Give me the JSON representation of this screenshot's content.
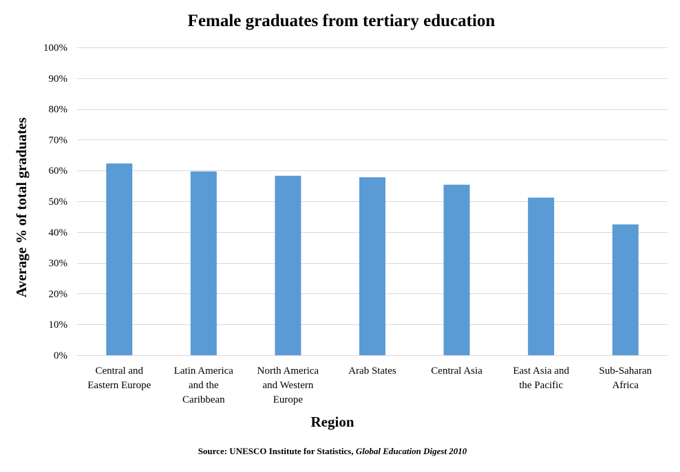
{
  "chart_data": {
    "type": "bar",
    "title": "Female graduates from tertiary education",
    "xlabel": "Region",
    "ylabel": "Average % of total graduates",
    "categories": [
      [
        "Central and",
        "Eastern Europe"
      ],
      [
        "Latin America",
        "and the",
        "Caribbean"
      ],
      [
        "North America",
        "and Western",
        "Europe"
      ],
      [
        "Arab States"
      ],
      [
        "Central Asia"
      ],
      [
        "East Asia and",
        "the Pacific"
      ],
      [
        "Sub-Saharan",
        "Africa"
      ]
    ],
    "values": [
      62.3,
      59.7,
      58.3,
      57.8,
      55.4,
      51.2,
      42.5
    ],
    "ylim": [
      0,
      100
    ],
    "yticks": [
      0,
      10,
      20,
      30,
      40,
      50,
      60,
      70,
      80,
      90,
      100
    ],
    "ytick_labels": [
      "0%",
      "10%",
      "20%",
      "30%",
      "40%",
      "50%",
      "60%",
      "70%",
      "80%",
      "90%",
      "100%"
    ],
    "grid": true,
    "legend": "none",
    "bar_color": "#5B9BD5",
    "grid_color": "#D9D9D9"
  },
  "source": {
    "prefix": "Source: UNESCO Institute for Statistics, ",
    "italic": "Global Education Digest 2010"
  }
}
